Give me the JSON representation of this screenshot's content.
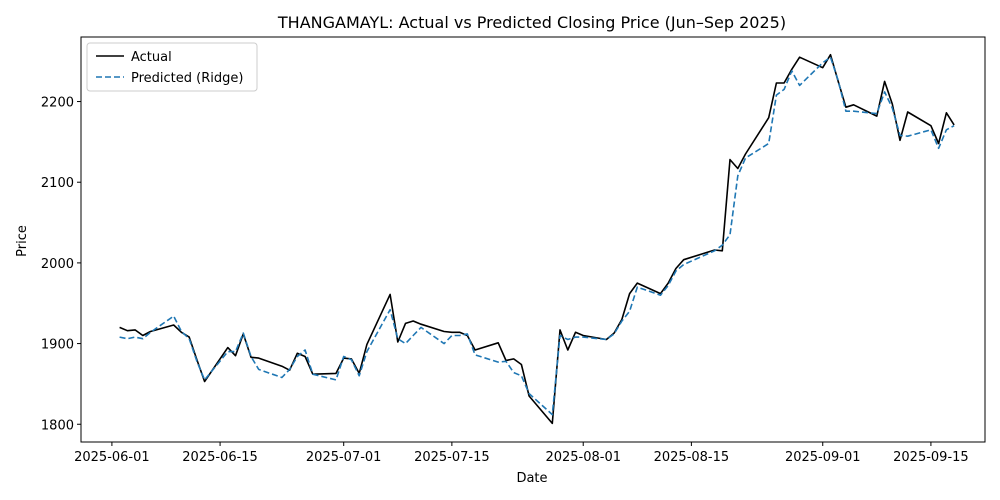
{
  "chart_data": {
    "type": "line",
    "title": "THANGAMAYL: Actual vs Predicted Closing Price (Jun–Sep 2025)",
    "xlabel": "Date",
    "ylabel": "Price",
    "xlim": [
      "2025-05-28",
      "2025-09-22"
    ],
    "ylim": [
      1778,
      2280
    ],
    "x_ticks": [
      "2025-06-01",
      "2025-06-15",
      "2025-07-01",
      "2025-07-15",
      "2025-08-01",
      "2025-08-15",
      "2025-09-01",
      "2025-09-15"
    ],
    "y_ticks": [
      1800,
      1900,
      2000,
      2100,
      2200
    ],
    "grid": false,
    "legend": "top-left",
    "series": [
      {
        "name": "Actual",
        "color": "#000000",
        "style": "solid",
        "x": [
          "2025-06-02",
          "2025-06-03",
          "2025-06-04",
          "2025-06-05",
          "2025-06-06",
          "2025-06-09",
          "2025-06-10",
          "2025-06-11",
          "2025-06-12",
          "2025-06-13",
          "2025-06-16",
          "2025-06-17",
          "2025-06-18",
          "2025-06-19",
          "2025-06-20",
          "2025-06-23",
          "2025-06-24",
          "2025-06-25",
          "2025-06-26",
          "2025-06-27",
          "2025-06-30",
          "2025-07-01",
          "2025-07-02",
          "2025-07-03",
          "2025-07-04",
          "2025-07-07",
          "2025-07-08",
          "2025-07-09",
          "2025-07-10",
          "2025-07-11",
          "2025-07-14",
          "2025-07-15",
          "2025-07-16",
          "2025-07-17",
          "2025-07-18",
          "2025-07-21",
          "2025-07-22",
          "2025-07-23",
          "2025-07-24",
          "2025-07-25",
          "2025-07-28",
          "2025-07-29",
          "2025-07-30",
          "2025-07-31",
          "2025-08-01",
          "2025-08-04",
          "2025-08-05",
          "2025-08-06",
          "2025-08-07",
          "2025-08-08",
          "2025-08-11",
          "2025-08-12",
          "2025-08-13",
          "2025-08-14",
          "2025-08-18",
          "2025-08-19",
          "2025-08-20",
          "2025-08-21",
          "2025-08-22",
          "2025-08-25",
          "2025-08-26",
          "2025-08-27",
          "2025-08-28",
          "2025-08-29",
          "2025-09-01",
          "2025-09-02",
          "2025-09-03",
          "2025-09-04",
          "2025-09-05",
          "2025-09-08",
          "2025-09-09",
          "2025-09-10",
          "2025-09-11",
          "2025-09-12",
          "2025-09-15",
          "2025-09-16",
          "2025-09-17",
          "2025-09-18"
        ],
        "values": [
          1920,
          1916,
          1917,
          1910,
          1915,
          1923,
          1914,
          1908,
          1880,
          1853,
          1895,
          1885,
          1912,
          1883,
          1882,
          1872,
          1867,
          1888,
          1884,
          1862,
          1863,
          1882,
          1881,
          1863,
          1899,
          1961,
          1902,
          1925,
          1928,
          1924,
          1915,
          1914,
          1914,
          1910,
          1892,
          1901,
          1879,
          1881,
          1874,
          1835,
          1801,
          1917,
          1892,
          1914,
          1910,
          1905,
          1913,
          1930,
          1962,
          1975,
          1962,
          1975,
          1993,
          2004,
          2016,
          2015,
          2128,
          2117,
          2135,
          2180,
          2223,
          2223,
          2240,
          2255,
          2242,
          2258,
          2225,
          2193,
          2196,
          2182,
          2225,
          2197,
          2152,
          2187,
          2170,
          2148,
          2186,
          2171
        ]
      },
      {
        "name": "Predicted (Ridge)",
        "color": "#1f77b4",
        "style": "dashed",
        "x": [
          "2025-06-02",
          "2025-06-03",
          "2025-06-04",
          "2025-06-05",
          "2025-06-06",
          "2025-06-09",
          "2025-06-10",
          "2025-06-11",
          "2025-06-12",
          "2025-06-13",
          "2025-06-16",
          "2025-06-17",
          "2025-06-18",
          "2025-06-19",
          "2025-06-20",
          "2025-06-23",
          "2025-06-24",
          "2025-06-25",
          "2025-06-26",
          "2025-06-27",
          "2025-06-30",
          "2025-07-01",
          "2025-07-02",
          "2025-07-03",
          "2025-07-04",
          "2025-07-07",
          "2025-07-08",
          "2025-07-09",
          "2025-07-10",
          "2025-07-11",
          "2025-07-14",
          "2025-07-15",
          "2025-07-16",
          "2025-07-17",
          "2025-07-18",
          "2025-07-21",
          "2025-07-22",
          "2025-07-23",
          "2025-07-24",
          "2025-07-25",
          "2025-07-28",
          "2025-07-29",
          "2025-07-30",
          "2025-07-31",
          "2025-08-01",
          "2025-08-04",
          "2025-08-05",
          "2025-08-06",
          "2025-08-07",
          "2025-08-08",
          "2025-08-11",
          "2025-08-12",
          "2025-08-13",
          "2025-08-14",
          "2025-08-18",
          "2025-08-19",
          "2025-08-20",
          "2025-08-21",
          "2025-08-22",
          "2025-08-25",
          "2025-08-26",
          "2025-08-27",
          "2025-08-28",
          "2025-08-29",
          "2025-09-01",
          "2025-09-02",
          "2025-09-03",
          "2025-09-04",
          "2025-09-05",
          "2025-09-08",
          "2025-09-09",
          "2025-09-10",
          "2025-09-11",
          "2025-09-12",
          "2025-09-15",
          "2025-09-16",
          "2025-09-17",
          "2025-09-18"
        ],
        "values": [
          1908,
          1906,
          1908,
          1906,
          1914,
          1934,
          1915,
          1906,
          1878,
          1855,
          1890,
          1890,
          1913,
          1884,
          1868,
          1858,
          1868,
          1884,
          1892,
          1862,
          1855,
          1884,
          1880,
          1860,
          1890,
          1942,
          1906,
          1900,
          1910,
          1920,
          1900,
          1910,
          1910,
          1912,
          1886,
          1877,
          1878,
          1864,
          1860,
          1838,
          1812,
          1910,
          1905,
          1908,
          1908,
          1905,
          1912,
          1928,
          1940,
          1970,
          1960,
          1972,
          1990,
          1998,
          2015,
          2022,
          2035,
          2108,
          2130,
          2148,
          2208,
          2215,
          2238,
          2220,
          2248,
          2255,
          2226,
          2188,
          2188,
          2185,
          2212,
          2192,
          2158,
          2157,
          2165,
          2142,
          2165,
          2170
        ]
      }
    ]
  }
}
